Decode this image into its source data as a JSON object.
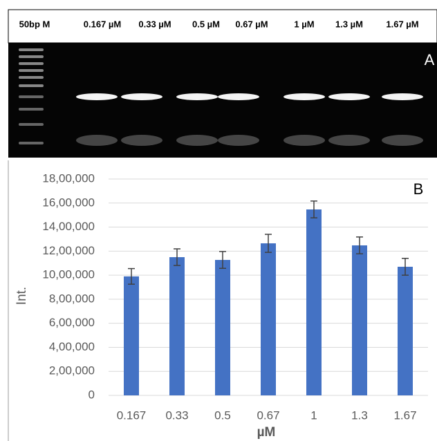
{
  "gel": {
    "lanes": [
      "50bp M",
      "0.167 µM",
      "0.33 µM",
      "0.5 µM",
      "0.67 µM",
      "1 µM",
      "1.3 µM",
      "1.67 µM"
    ],
    "panel_label": "A"
  },
  "chart_data": {
    "type": "bar",
    "panel_label": "B",
    "x_label": "µM",
    "y_label": "Int.",
    "categories": [
      "0.167",
      "0.33",
      "0.5",
      "0.67",
      "1",
      "1.3",
      "1.67"
    ],
    "values": [
      990000,
      1150000,
      1127000,
      1265000,
      1547000,
      1248000,
      1070000
    ],
    "errors": [
      65000,
      69000,
      70000,
      75000,
      70000,
      70000,
      70000
    ],
    "color": "#4472c4",
    "ylim": [
      0,
      1800000
    ],
    "yticks": [
      0,
      {
        "value": 200000,
        "label": "2,00,000"
      },
      {
        "value": 400000,
        "label": "4,00,000"
      },
      {
        "value": 600000,
        "label": "6,00,000"
      },
      {
        "value": 800000,
        "label": "8,00,000"
      },
      {
        "value": 1000000,
        "label": "10,00,000"
      },
      {
        "value": 1200000,
        "label": "12,00,000"
      },
      {
        "value": 1400000,
        "label": "14,00,000"
      },
      {
        "value": 1600000,
        "label": "16,00,000"
      },
      {
        "value": 1800000,
        "label": "18,00,000"
      }
    ],
    "grid": true
  }
}
